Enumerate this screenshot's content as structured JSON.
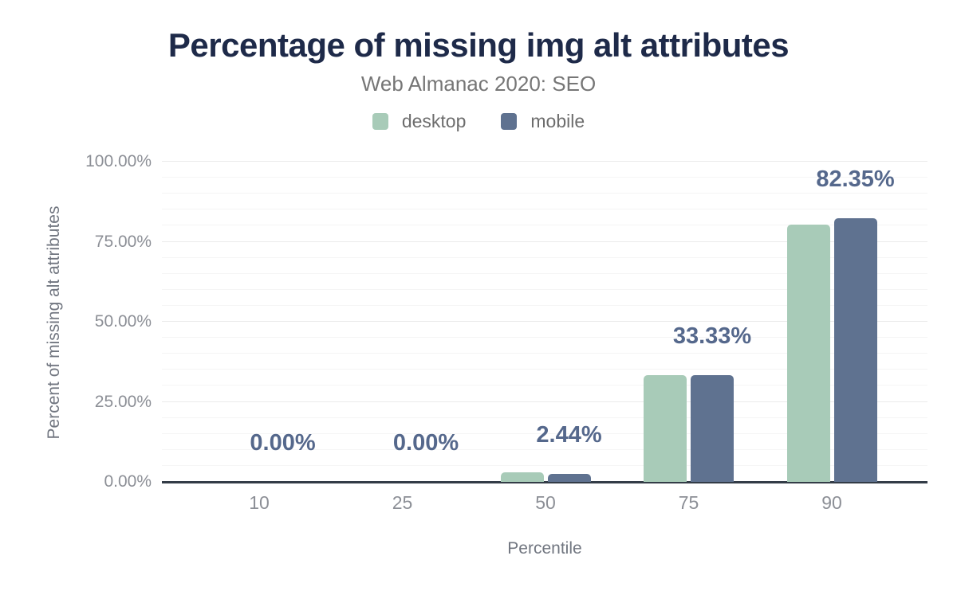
{
  "chart_data": {
    "type": "bar",
    "title": "Percentage of missing img alt attributes",
    "subtitle": "Web Almanac 2020: SEO",
    "categories": [
      "10",
      "25",
      "50",
      "75",
      "90"
    ],
    "series": [
      {
        "name": "desktop",
        "color": "#a8cbb8",
        "values": [
          0,
          0,
          3.0,
          33.33,
          80.4
        ]
      },
      {
        "name": "mobile",
        "color": "#5f7290",
        "values": [
          0,
          0,
          2.44,
          33.33,
          82.35
        ]
      }
    ],
    "data_labels": [
      "0.00%",
      "0.00%",
      "2.44%",
      "33.33%",
      "82.35%"
    ],
    "data_labels_series": "mobile",
    "xlabel": "Percentile",
    "ylabel": "Percent of missing alt attributes",
    "y_ticks": [
      "0.00%",
      "25.00%",
      "50.00%",
      "75.00%",
      "100.00%"
    ],
    "ylim": [
      0,
      100
    ],
    "grid": {
      "minor_step_pct": 5,
      "major_step_pct": 25,
      "orientation": "horizontal"
    },
    "legend_position": "top"
  },
  "colors": {
    "title": "#1e2a49",
    "subtitle": "#767676",
    "axis_text": "#8c8f96",
    "axis_line": "#333c47",
    "data_label": "#55688c",
    "desktop": "#a8cbb8",
    "mobile": "#5f7290",
    "background": "#ffffff"
  }
}
